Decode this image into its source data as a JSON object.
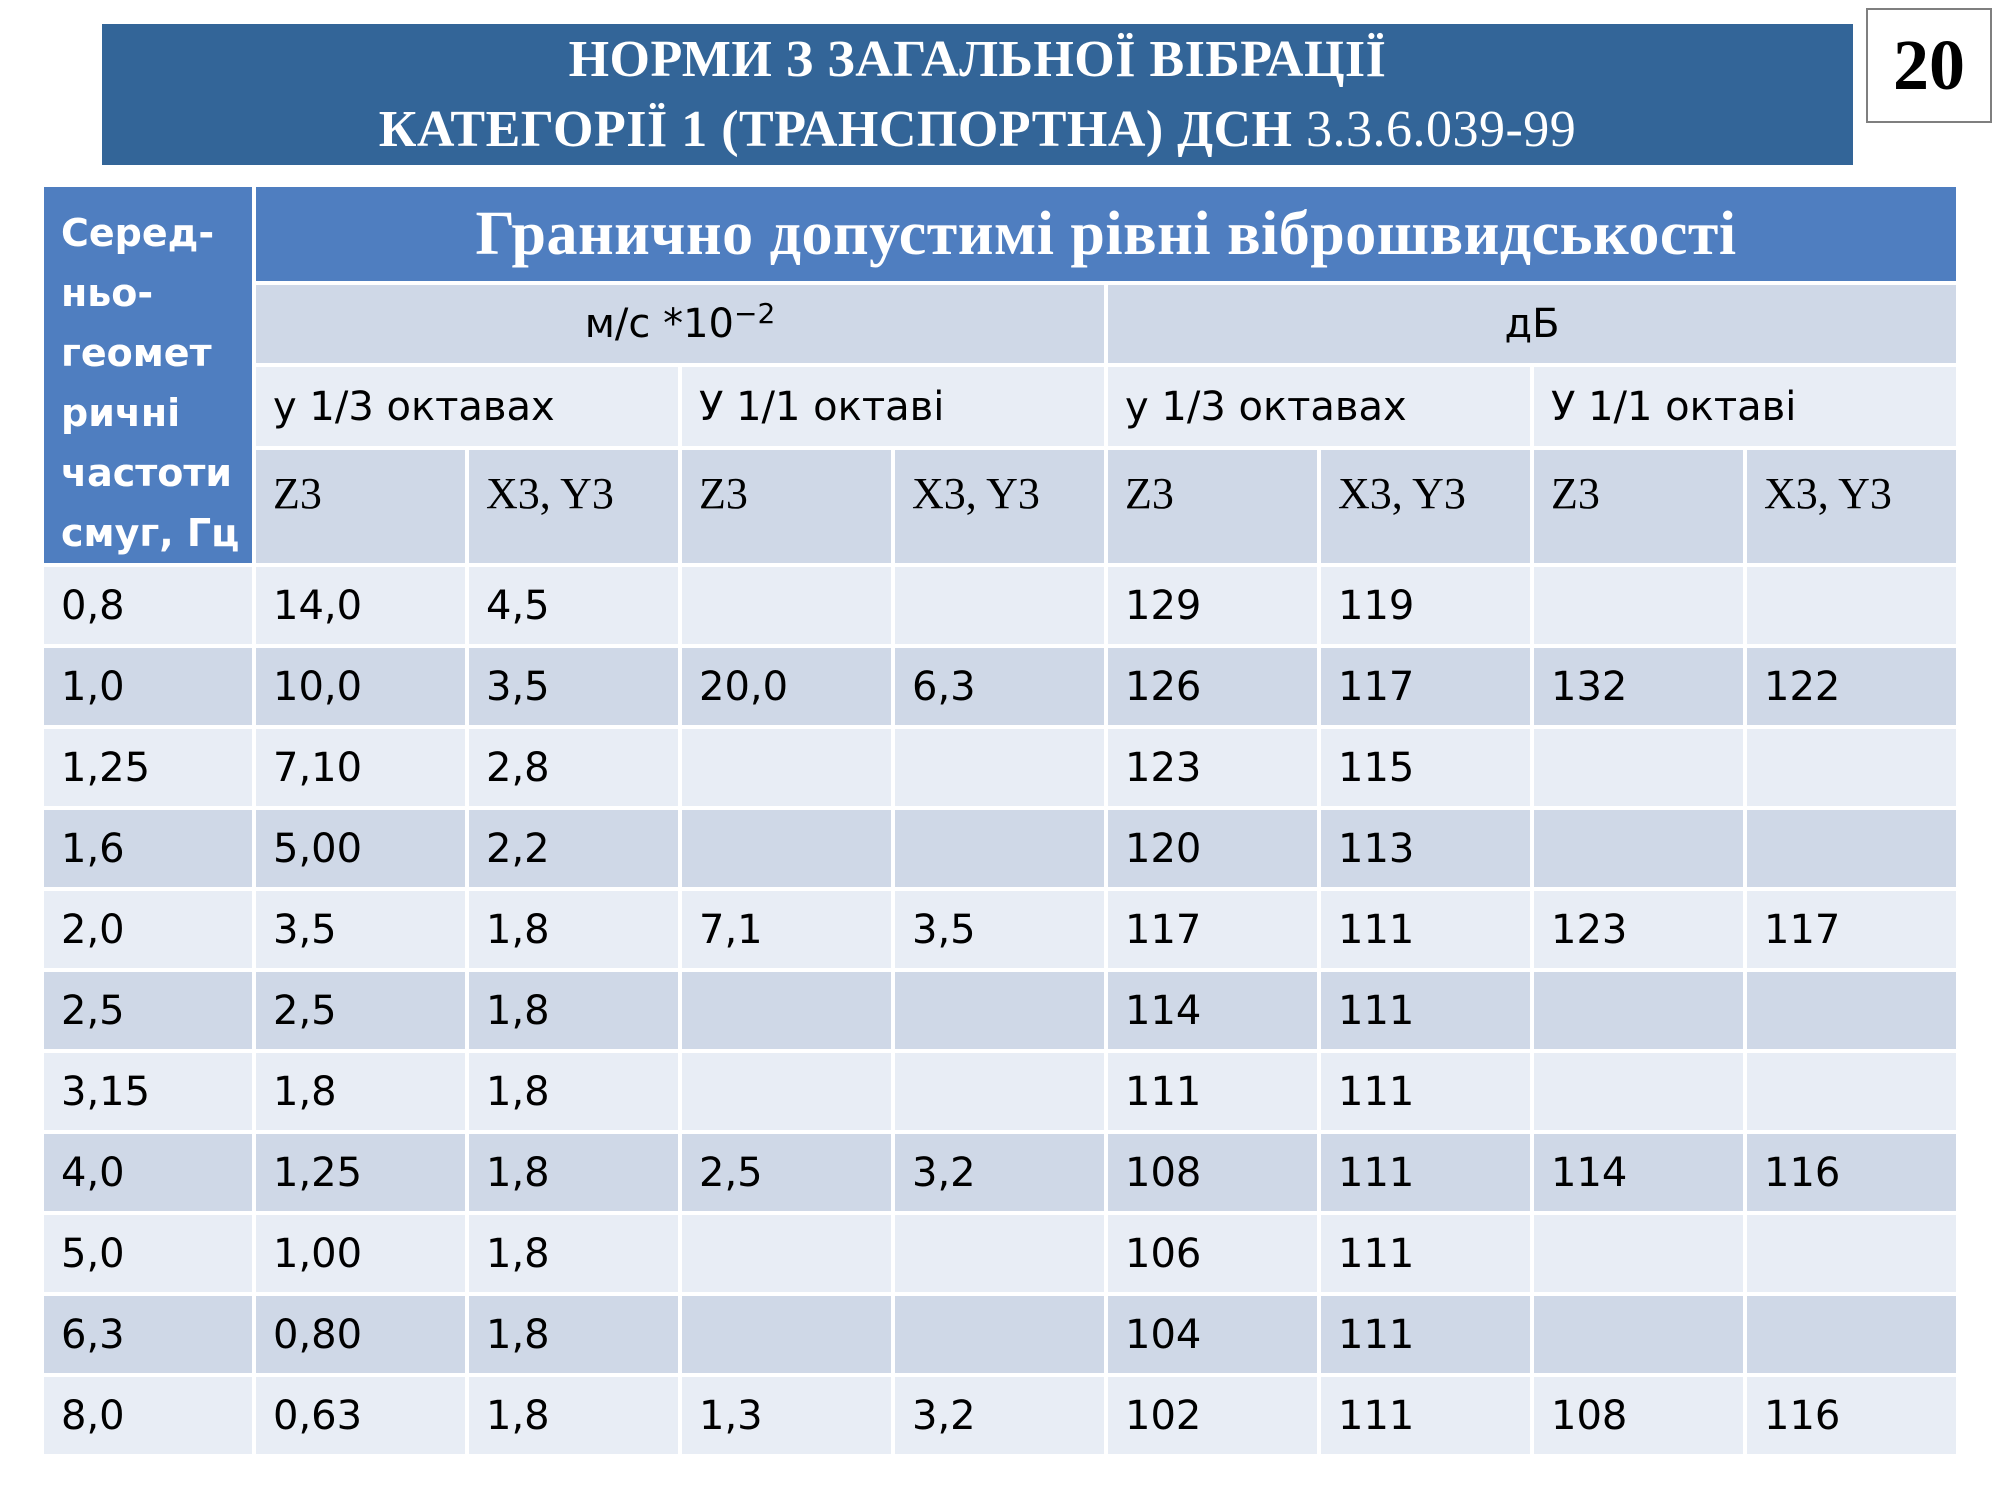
{
  "title": {
    "line1": "НОРМИ З ЗАГАЛЬНОЇ ВІБРАЦІЇ",
    "line2_text": "КАТЕГОРІЇ 1 (ТРАНСПОРТНА) ДСН",
    "line2_code": "3.3.6.039-99"
  },
  "page_number": "20",
  "table": {
    "side_header": "Серед-ньо-геомет ричні частоти смуг, Гц",
    "main_header": "Гранично допустимі рівні віброшвидськості",
    "unit_ms": "м/с *10",
    "unit_ms_exp": "−2",
    "unit_db": "дБ",
    "octave_headers": [
      "у 1/3 октавах",
      "У 1/1 октаві",
      "у 1/3 октавах",
      "У 1/1 октаві"
    ],
    "axis_headers": [
      "Z3",
      "X3, Y3",
      "Z3",
      "X3, Y3",
      "Z3",
      "X3, Y3",
      "Z3",
      "X3, Y3"
    ],
    "rows": [
      [
        "0,8",
        "14,0",
        "4,5",
        "",
        "",
        "129",
        "119",
        "",
        ""
      ],
      [
        "1,0",
        "10,0",
        "3,5",
        "20,0",
        "6,3",
        "126",
        "117",
        "132",
        "122"
      ],
      [
        "1,25",
        "7,10",
        "2,8",
        "",
        "",
        "123",
        "115",
        "",
        ""
      ],
      [
        "1,6",
        "5,00",
        "2,2",
        "",
        "",
        "120",
        "113",
        "",
        ""
      ],
      [
        "2,0",
        "3,5",
        "1,8",
        "7,1",
        "3,5",
        "117",
        "111",
        "123",
        "117"
      ],
      [
        "2,5",
        "2,5",
        "1,8",
        "",
        "",
        "114",
        "111",
        "",
        ""
      ],
      [
        "3,15",
        "1,8",
        "1,8",
        "",
        "",
        "111",
        "111",
        "",
        ""
      ],
      [
        "4,0",
        "1,25",
        "1,8",
        "2,5",
        "3,2",
        "108",
        "111",
        "114",
        "116"
      ],
      [
        "5,0",
        "1,00",
        "1,8",
        "",
        "",
        "106",
        "111",
        "",
        ""
      ],
      [
        "6,3",
        "0,80",
        "1,8",
        "",
        "",
        "104",
        "111",
        "",
        ""
      ],
      [
        "8,0",
        "0,63",
        "1,8",
        "1,3",
        "3,2",
        "102",
        "111",
        "108",
        "116"
      ]
    ]
  }
}
